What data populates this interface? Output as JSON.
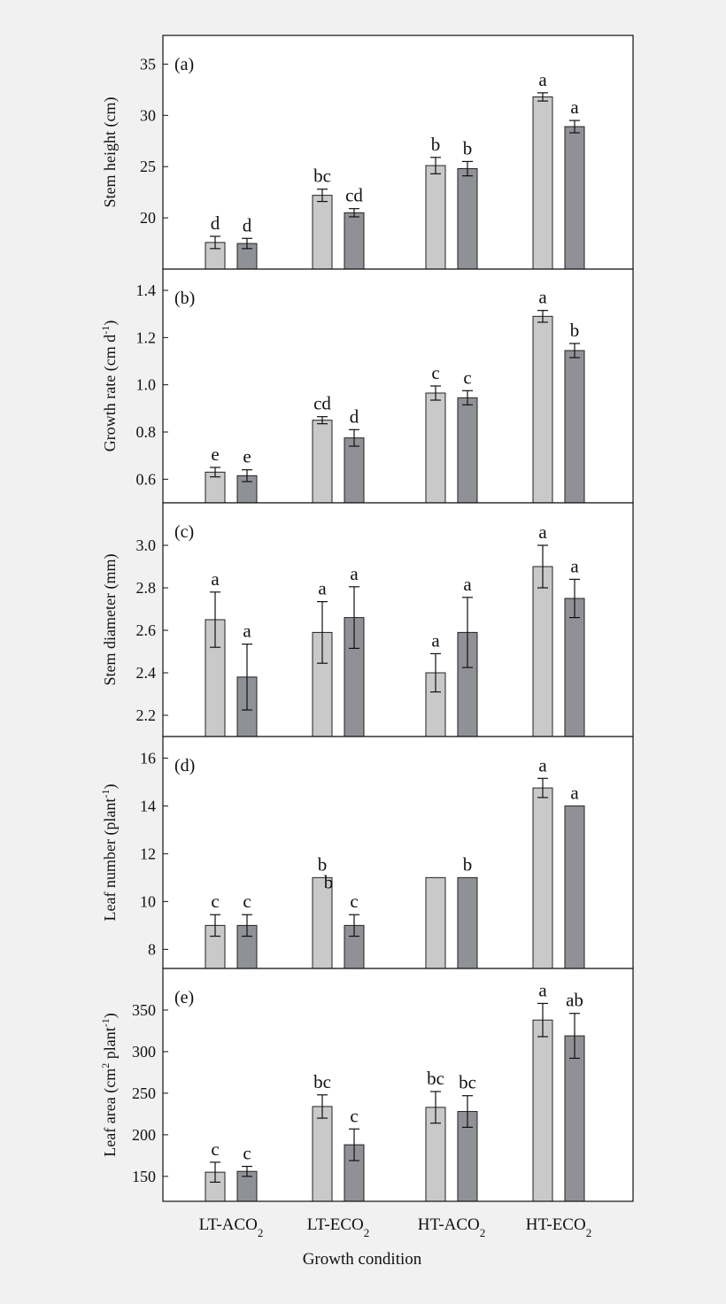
{
  "colors": {
    "light_bar": "#c9c9c9",
    "dark_bar": "#8f9196",
    "panel_background": "#ffffff",
    "page_background": "#f1f1f1"
  },
  "figure": {
    "xlabel": "Growth condition"
  },
  "chart_data": [
    {
      "type": "bar",
      "panel_label": "(a)",
      "ylabel": "Stem height (cm)",
      "ylim": [
        15,
        37.8
      ],
      "yticks": [
        20,
        25,
        30,
        35
      ],
      "categories": [
        "LT-ACO2",
        "LT-ECO2",
        "HT-ACO2",
        "HT-ECO2"
      ],
      "series": [
        {
          "color": "#c9c9c9",
          "values": [
            17.6,
            22.2,
            25.1,
            31.8
          ],
          "errors": [
            0.6,
            0.6,
            0.8,
            0.4
          ],
          "letters": [
            "d",
            "bc",
            "b",
            "a"
          ]
        },
        {
          "color": "#8f9196",
          "values": [
            17.5,
            20.5,
            24.8,
            28.9
          ],
          "errors": [
            0.5,
            0.4,
            0.7,
            0.6
          ],
          "letters": [
            "d",
            "cd",
            "b",
            "a"
          ]
        }
      ]
    },
    {
      "type": "bar",
      "panel_label": "(b)",
      "ylabel": "Growth rate (cm d-1)",
      "ylim": [
        0.5,
        1.49
      ],
      "yticks": [
        0.6,
        0.8,
        1.0,
        1.2,
        1.4
      ],
      "categories": [
        "LT-ACO2",
        "LT-ECO2",
        "HT-ACO2",
        "HT-ECO2"
      ],
      "series": [
        {
          "color": "#c9c9c9",
          "values": [
            0.63,
            0.85,
            0.965,
            1.29
          ],
          "errors": [
            0.02,
            0.015,
            0.03,
            0.025
          ],
          "letters": [
            "e",
            "cd",
            "c",
            "a"
          ]
        },
        {
          "color": "#8f9196",
          "values": [
            0.615,
            0.775,
            0.945,
            1.145
          ],
          "errors": [
            0.025,
            0.035,
            0.03,
            0.03
          ],
          "letters": [
            "e",
            "d",
            "c",
            "b"
          ]
        }
      ]
    },
    {
      "type": "bar",
      "panel_label": "(c)",
      "ylabel": "Stem diameter (mm)",
      "ylim": [
        2.1,
        3.2
      ],
      "yticks": [
        2.2,
        2.4,
        2.6,
        2.8,
        3.0
      ],
      "categories": [
        "LT-ACO2",
        "LT-ECO2",
        "HT-ACO2",
        "HT-ECO2"
      ],
      "series": [
        {
          "color": "#c9c9c9",
          "values": [
            2.65,
            2.59,
            2.4,
            2.9
          ],
          "errors": [
            0.13,
            0.145,
            0.09,
            0.1
          ],
          "letters": [
            "a",
            "a",
            "a",
            "a"
          ]
        },
        {
          "color": "#8f9196",
          "values": [
            2.38,
            2.66,
            2.59,
            2.75
          ],
          "errors": [
            0.155,
            0.145,
            0.165,
            0.09
          ],
          "letters": [
            "a",
            "a",
            "a",
            "a"
          ]
        }
      ]
    },
    {
      "type": "bar",
      "panel_label": "(d)",
      "ylabel": "Leaf number (plant-1)",
      "ylim": [
        7.2,
        16.9
      ],
      "yticks": [
        8,
        10,
        12,
        14,
        16
      ],
      "categories": [
        "LT-ACO2",
        "LT-ECO2",
        "HT-ACO2",
        "HT-ECO2"
      ],
      "series": [
        {
          "color": "#c9c9c9",
          "values": [
            9,
            11,
            11,
            14.75
          ],
          "errors": [
            0.45,
            0,
            0,
            0.4
          ],
          "letters": [
            "c",
            "b",
            "b",
            "a"
          ]
        },
        {
          "color": "#8f9196",
          "values": [
            9,
            9,
            11,
            14
          ],
          "errors": [
            0.45,
            0.45,
            0,
            0
          ],
          "letters": [
            "c",
            "c",
            "b",
            "a"
          ]
        }
      ]
    },
    {
      "type": "bar",
      "panel_label": "(e)",
      "ylabel": "Leaf area (cm2 plant-1)",
      "ylim": [
        120,
        400
      ],
      "yticks": [
        150,
        200,
        250,
        300,
        350
      ],
      "categories": [
        "LT-ACO2",
        "LT-ECO2",
        "HT-ACO2",
        "HT-ECO2"
      ],
      "series": [
        {
          "color": "#c9c9c9",
          "values": [
            155,
            234,
            233,
            338
          ],
          "errors": [
            12,
            14,
            19,
            20
          ],
          "letters": [
            "c",
            "bc",
            "bc",
            "a"
          ]
        },
        {
          "color": "#8f9196",
          "values": [
            156,
            188,
            228,
            319
          ],
          "errors": [
            6,
            19,
            19,
            27
          ],
          "letters": [
            "c",
            "c",
            "bc",
            "ab"
          ]
        }
      ]
    }
  ]
}
